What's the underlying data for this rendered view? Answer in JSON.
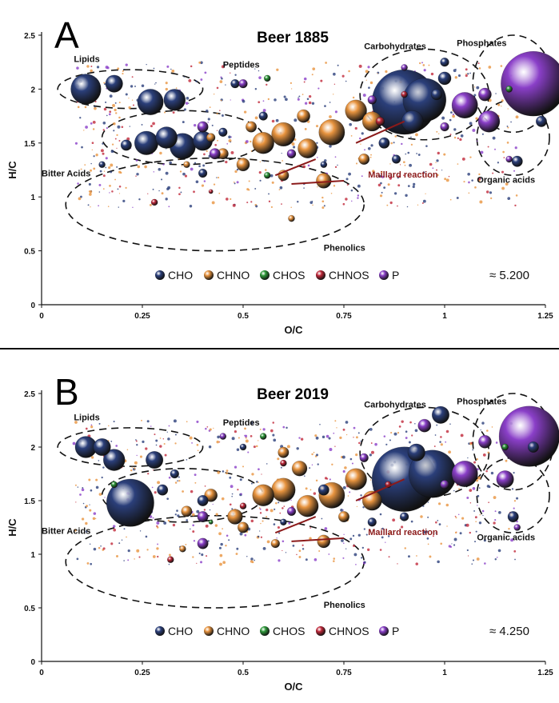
{
  "panels": [
    {
      "letter": "A",
      "title": "Beer 1885",
      "approx_label": "≈ 5.200",
      "regions": {
        "lipids": "Lipids",
        "peptides": "Peptides",
        "carbohydrates": "Carbohydrates",
        "phosphates": "Phosphates",
        "bitter_acids": "Bitter Acids",
        "maillard": "Maillard reaction",
        "organic_acids": "Organic acids",
        "phenolics": "Phenolics"
      }
    },
    {
      "letter": "B",
      "title": "Beer 2019",
      "approx_label": "≈ 4.250",
      "regions": {
        "lipids": "Lipids",
        "peptides": "Peptides",
        "carbohydrates": "Carbohydrates",
        "phosphates": "Phosphates",
        "bitter_acids": "Bitter Acids",
        "maillard": "Maillard reaction",
        "organic_acids": "Organic acids",
        "phenolics": "Phenolics"
      }
    }
  ],
  "legend": [
    {
      "label": "CHO",
      "color": "#2b3f7a"
    },
    {
      "label": "CHNO",
      "color": "#e8943f"
    },
    {
      "label": "CHOS",
      "color": "#2e9a3a"
    },
    {
      "label": "CHNOS",
      "color": "#c0283a"
    },
    {
      "label": "P",
      "color": "#8a3fc8"
    }
  ],
  "colors": {
    "CHO": "#2b3f7a",
    "CHNO": "#e8943f",
    "CHOS": "#2e9a3a",
    "CHNOS": "#c0283a",
    "P": "#8a3fc8",
    "maillard": "#8b1a1a"
  },
  "chart_data": [
    {
      "type": "scatter",
      "title": "Beer 1885",
      "xlabel": "O/C",
      "ylabel": "H/C",
      "xlim": [
        0,
        1.25
      ],
      "ylim": [
        0,
        2.5
      ],
      "xticks": [
        "0",
        "0.25",
        "0.5",
        "0.75",
        "1",
        "1.25"
      ],
      "yticks": [
        "0",
        "0.5",
        "1",
        "1.5",
        "2",
        "2.5"
      ],
      "grid": false,
      "legend_position": "bottom",
      "series": [
        {
          "name": "CHO",
          "points": [
            [
              0.11,
              2.0,
              14
            ],
            [
              0.18,
              2.05,
              8
            ],
            [
              0.27,
              1.88,
              12
            ],
            [
              0.33,
              1.9,
              10
            ],
            [
              0.26,
              1.5,
              11
            ],
            [
              0.31,
              1.55,
              10
            ],
            [
              0.35,
              1.47,
              12
            ],
            [
              0.4,
              1.52,
              9
            ],
            [
              0.21,
              1.48,
              5
            ],
            [
              0.45,
              1.6,
              4
            ],
            [
              0.55,
              1.75,
              4
            ],
            [
              0.62,
              1.4,
              4
            ],
            [
              0.7,
              1.3,
              3
            ],
            [
              0.85,
              1.5,
              5
            ],
            [
              0.9,
              1.88,
              30
            ],
            [
              0.95,
              1.9,
              20
            ],
            [
              0.92,
              1.7,
              10
            ],
            [
              1.0,
              2.25,
              4
            ],
            [
              1.0,
              2.1,
              6
            ],
            [
              0.98,
              1.95,
              5
            ],
            [
              0.88,
              1.35,
              4
            ],
            [
              1.18,
              1.33,
              5
            ],
            [
              1.24,
              1.7,
              5
            ],
            [
              0.15,
              1.3,
              3
            ],
            [
              0.4,
              1.22,
              4
            ],
            [
              0.48,
              2.05,
              4
            ]
          ]
        },
        {
          "name": "CHNO",
          "points": [
            [
              0.55,
              1.5,
              10
            ],
            [
              0.6,
              1.58,
              11
            ],
            [
              0.66,
              1.45,
              9
            ],
            [
              0.72,
              1.6,
              12
            ],
            [
              0.78,
              1.8,
              10
            ],
            [
              0.82,
              1.7,
              9
            ],
            [
              0.7,
              1.15,
              7
            ],
            [
              0.5,
              1.3,
              6
            ],
            [
              0.45,
              1.4,
              5
            ],
            [
              0.65,
              1.75,
              6
            ],
            [
              0.42,
              1.55,
              4
            ],
            [
              0.6,
              1.2,
              5
            ],
            [
              0.36,
              1.3,
              3
            ],
            [
              0.62,
              0.8,
              3
            ],
            [
              0.8,
              1.35,
              5
            ],
            [
              0.52,
              1.65,
              5
            ]
          ]
        },
        {
          "name": "CHOS",
          "points": [
            [
              0.56,
              1.2,
              3
            ],
            [
              0.56,
              2.1,
              3
            ],
            [
              1.16,
              2.0,
              3
            ]
          ]
        },
        {
          "name": "CHNOS",
          "points": [
            [
              0.28,
              0.95,
              3
            ],
            [
              0.42,
              1.05,
              2
            ],
            [
              0.84,
              1.7,
              4
            ],
            [
              0.9,
              1.95,
              3
            ]
          ]
        },
        {
          "name": "P",
          "points": [
            [
              1.22,
              2.05,
              30
            ],
            [
              1.11,
              1.7,
              10
            ],
            [
              1.05,
              1.85,
              12
            ],
            [
              0.5,
              2.05,
              4
            ],
            [
              0.4,
              1.65,
              5
            ],
            [
              0.43,
              1.4,
              5
            ],
            [
              0.62,
              1.4,
              4
            ],
            [
              1.16,
              1.35,
              3
            ],
            [
              1.1,
              1.95,
              6
            ],
            [
              0.82,
              1.9,
              4
            ],
            [
              1.0,
              1.65,
              4
            ],
            [
              0.9,
              2.2,
              3
            ]
          ]
        }
      ]
    },
    {
      "type": "scatter",
      "title": "Beer 2019",
      "xlabel": "O/C",
      "ylabel": "H/C",
      "xlim": [
        0,
        1.25
      ],
      "ylim": [
        0,
        2.5
      ],
      "xticks": [
        "0",
        "0.25",
        "0.5",
        "0.75",
        "1",
        "1.25"
      ],
      "yticks": [
        "0",
        "0.5",
        "1",
        "1.5",
        "2",
        "2.5"
      ],
      "grid": false,
      "legend_position": "bottom",
      "series": [
        {
          "name": "CHO",
          "points": [
            [
              0.11,
              2.0,
              10
            ],
            [
              0.15,
              2.0,
              8
            ],
            [
              0.18,
              1.88,
              10
            ],
            [
              0.28,
              1.88,
              8
            ],
            [
              0.22,
              1.48,
              22
            ],
            [
              0.3,
              1.6,
              5
            ],
            [
              0.4,
              1.5,
              5
            ],
            [
              0.9,
              1.7,
              30
            ],
            [
              0.97,
              1.75,
              22
            ],
            [
              0.99,
              2.3,
              8
            ],
            [
              0.93,
              1.95,
              8
            ],
            [
              0.7,
              1.6,
              5
            ],
            [
              0.82,
              1.3,
              4
            ],
            [
              0.9,
              1.35,
              4
            ],
            [
              1.17,
              1.35,
              5
            ],
            [
              1.22,
              2.0,
              5
            ],
            [
              0.33,
              1.75,
              4
            ],
            [
              0.5,
              2.0,
              3
            ],
            [
              0.6,
              1.3,
              3
            ]
          ]
        },
        {
          "name": "CHNO",
          "points": [
            [
              0.55,
              1.55,
              10
            ],
            [
              0.6,
              1.6,
              11
            ],
            [
              0.66,
              1.45,
              10
            ],
            [
              0.72,
              1.55,
              12
            ],
            [
              0.78,
              1.7,
              10
            ],
            [
              0.82,
              1.5,
              9
            ],
            [
              0.7,
              1.12,
              6
            ],
            [
              0.48,
              1.35,
              7
            ],
            [
              0.42,
              1.55,
              6
            ],
            [
              0.64,
              1.8,
              7
            ],
            [
              0.5,
              1.25,
              5
            ],
            [
              0.36,
              1.4,
              5
            ],
            [
              0.75,
              1.35,
              5
            ],
            [
              0.58,
              1.1,
              4
            ],
            [
              0.6,
              1.95,
              5
            ],
            [
              0.35,
              1.05,
              3
            ]
          ]
        },
        {
          "name": "CHOS",
          "points": [
            [
              0.55,
              2.1,
              3
            ],
            [
              0.18,
              1.65,
              3
            ],
            [
              0.42,
              1.3,
              2
            ],
            [
              1.15,
              2.0,
              3
            ]
          ]
        },
        {
          "name": "CHNOS",
          "points": [
            [
              0.32,
              0.95,
              3
            ],
            [
              0.6,
              1.85,
              3
            ],
            [
              0.86,
              1.65,
              3
            ],
            [
              0.5,
              1.45,
              3
            ]
          ]
        },
        {
          "name": "P",
          "points": [
            [
              1.21,
              2.1,
              28
            ],
            [
              1.05,
              1.75,
              12
            ],
            [
              1.15,
              1.7,
              8
            ],
            [
              0.95,
              2.2,
              6
            ],
            [
              0.4,
              1.35,
              5
            ],
            [
              0.4,
              1.1,
              5
            ],
            [
              0.62,
              1.4,
              4
            ],
            [
              1.1,
              2.05,
              6
            ],
            [
              0.8,
              1.9,
              4
            ],
            [
              1.0,
              1.65,
              4
            ],
            [
              0.45,
              2.1,
              3
            ],
            [
              1.18,
              1.25,
              3
            ]
          ]
        }
      ]
    }
  ]
}
